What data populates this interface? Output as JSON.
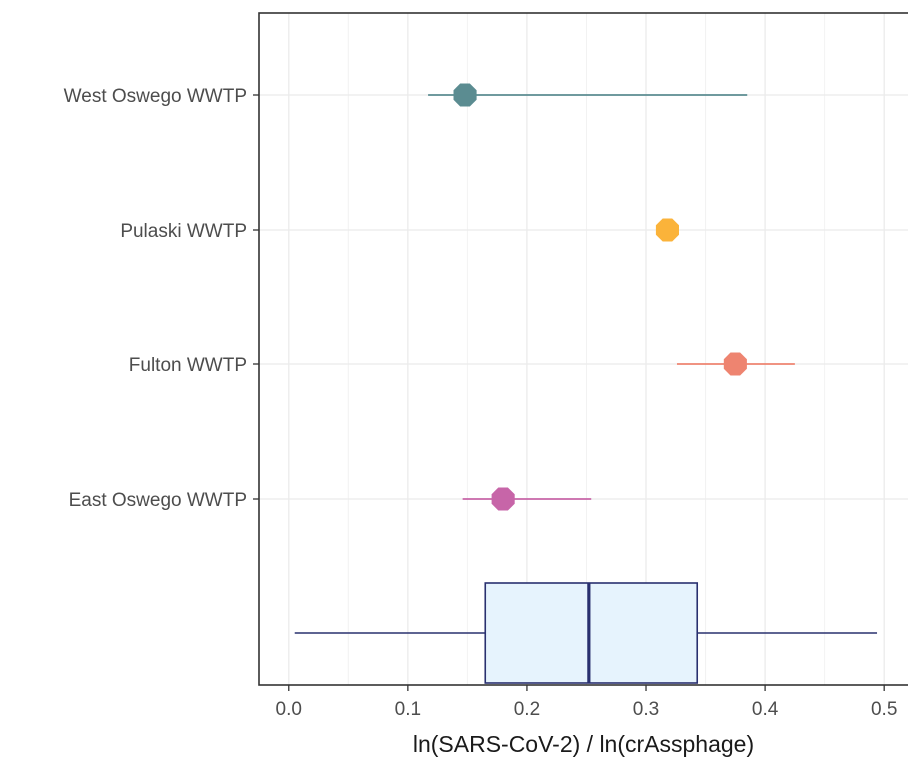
{
  "chart_data": {
    "type": "forest-plot-with-boxplot",
    "title": "",
    "xlabel": "ln(SARS-CoV-2) / ln(crAssphage)",
    "ylabel": "",
    "xlim": [
      -0.025,
      0.52
    ],
    "x_ticks": [
      0.0,
      0.1,
      0.2,
      0.3,
      0.4,
      0.5
    ],
    "x_tick_labels": [
      "0.0",
      "0.1",
      "0.2",
      "0.3",
      "0.4",
      "0.5"
    ],
    "grid": true,
    "categories": [
      "West Oswego WWTP",
      "Pulaski WWTP",
      "Fulton WWTP",
      "East Oswego WWTP"
    ],
    "series": [
      {
        "category": "West Oswego WWTP",
        "estimate": 0.148,
        "lower": 0.117,
        "upper": 0.385,
        "color": "#5b8c91"
      },
      {
        "category": "Pulaski WWTP",
        "estimate": 0.318,
        "lower": 0.318,
        "upper": 0.318,
        "color": "#fbb33a"
      },
      {
        "category": "Fulton WWTP",
        "estimate": 0.375,
        "lower": 0.326,
        "upper": 0.425,
        "color": "#ee8470"
      },
      {
        "category": "East Oswego WWTP",
        "estimate": 0.18,
        "lower": 0.146,
        "upper": 0.254,
        "color": "#c765a8"
      }
    ],
    "boxplot": {
      "min": 0.005,
      "q1": 0.165,
      "median": 0.252,
      "q3": 0.343,
      "max": 0.494,
      "fill": "#e6f3fd",
      "stroke": "#29306f"
    }
  }
}
